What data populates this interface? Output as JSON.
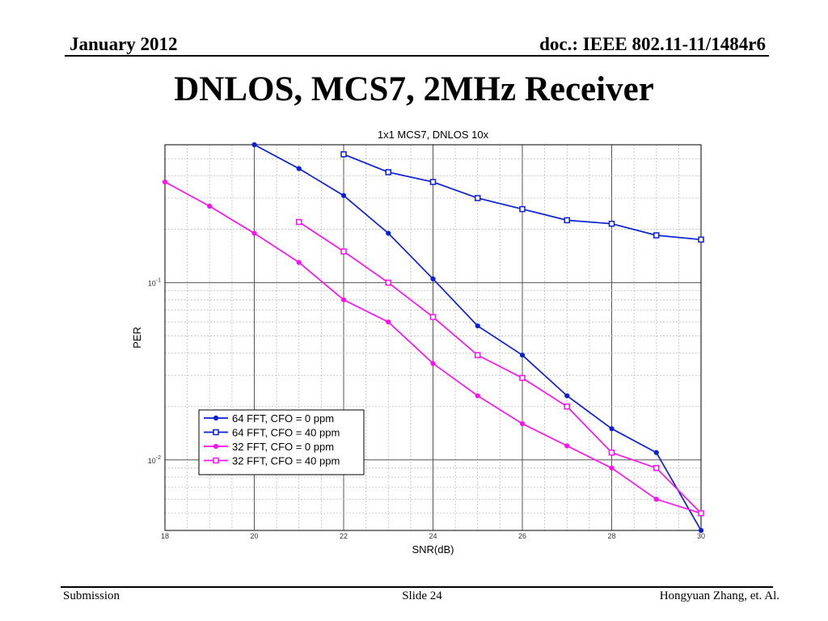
{
  "header": {
    "date": "January 2012",
    "doc_id": "doc.: IEEE 802.11-11/1484r6"
  },
  "slide": {
    "title": "DNLOS, MCS7, 2MHz Receiver"
  },
  "footer": {
    "left": "Submission",
    "center": "Slide 24",
    "right": "Hongyuan Zhang, et. Al."
  },
  "colors": {
    "blue": "#0a1fd6",
    "magenta": "#ff10f0"
  },
  "chart_data": {
    "type": "line",
    "title": "1x1 MCS7, DNLOS 10x",
    "xlabel": "SNR(dB)",
    "ylabel": "PER",
    "xlim": [
      18,
      30
    ],
    "ylim": [
      0.004,
      0.6
    ],
    "yscale": "log",
    "xticks": [
      "18",
      "20",
      "22",
      "24",
      "26",
      "28",
      "30"
    ],
    "yticks": [
      {
        "value": 0.1,
        "base": "10",
        "exp": "-1"
      },
      {
        "value": 0.01,
        "base": "10",
        "exp": "-2"
      }
    ],
    "grid": true,
    "legend": "bottom-left",
    "series": [
      {
        "name": "64 FFT, CFO = 0 ppm",
        "color": "#0a1fd6",
        "marker": "dot",
        "x": [
          20,
          21,
          22,
          23,
          24,
          25,
          26,
          27,
          28,
          29,
          30
        ],
        "y": [
          0.6,
          0.44,
          0.31,
          0.19,
          0.105,
          0.057,
          0.039,
          0.023,
          0.015,
          0.011,
          0.004
        ]
      },
      {
        "name": "64 FFT, CFO = 40 ppm",
        "color": "#0a1fd6",
        "marker": "square",
        "x": [
          22,
          23,
          24,
          25,
          26,
          27,
          28,
          29,
          30
        ],
        "y": [
          0.53,
          0.42,
          0.37,
          0.3,
          0.26,
          0.225,
          0.215,
          0.185,
          0.175
        ]
      },
      {
        "name": "32 FFT, CFO = 0 ppm",
        "color": "#ff10f0",
        "marker": "dot",
        "x": [
          18,
          19,
          20,
          21,
          22,
          23,
          24,
          25,
          26,
          27,
          28,
          29,
          30
        ],
        "y": [
          0.37,
          0.27,
          0.19,
          0.13,
          0.08,
          0.06,
          0.035,
          0.023,
          0.016,
          0.012,
          0.009,
          0.006,
          0.005
        ]
      },
      {
        "name": "32 FFT, CFO = 40 ppm",
        "color": "#ff10f0",
        "marker": "square",
        "x": [
          21,
          22,
          23,
          24,
          25,
          26,
          27,
          28,
          29,
          30
        ],
        "y": [
          0.22,
          0.15,
          0.1,
          0.064,
          0.039,
          0.029,
          0.02,
          0.011,
          0.009,
          0.005
        ]
      }
    ]
  }
}
